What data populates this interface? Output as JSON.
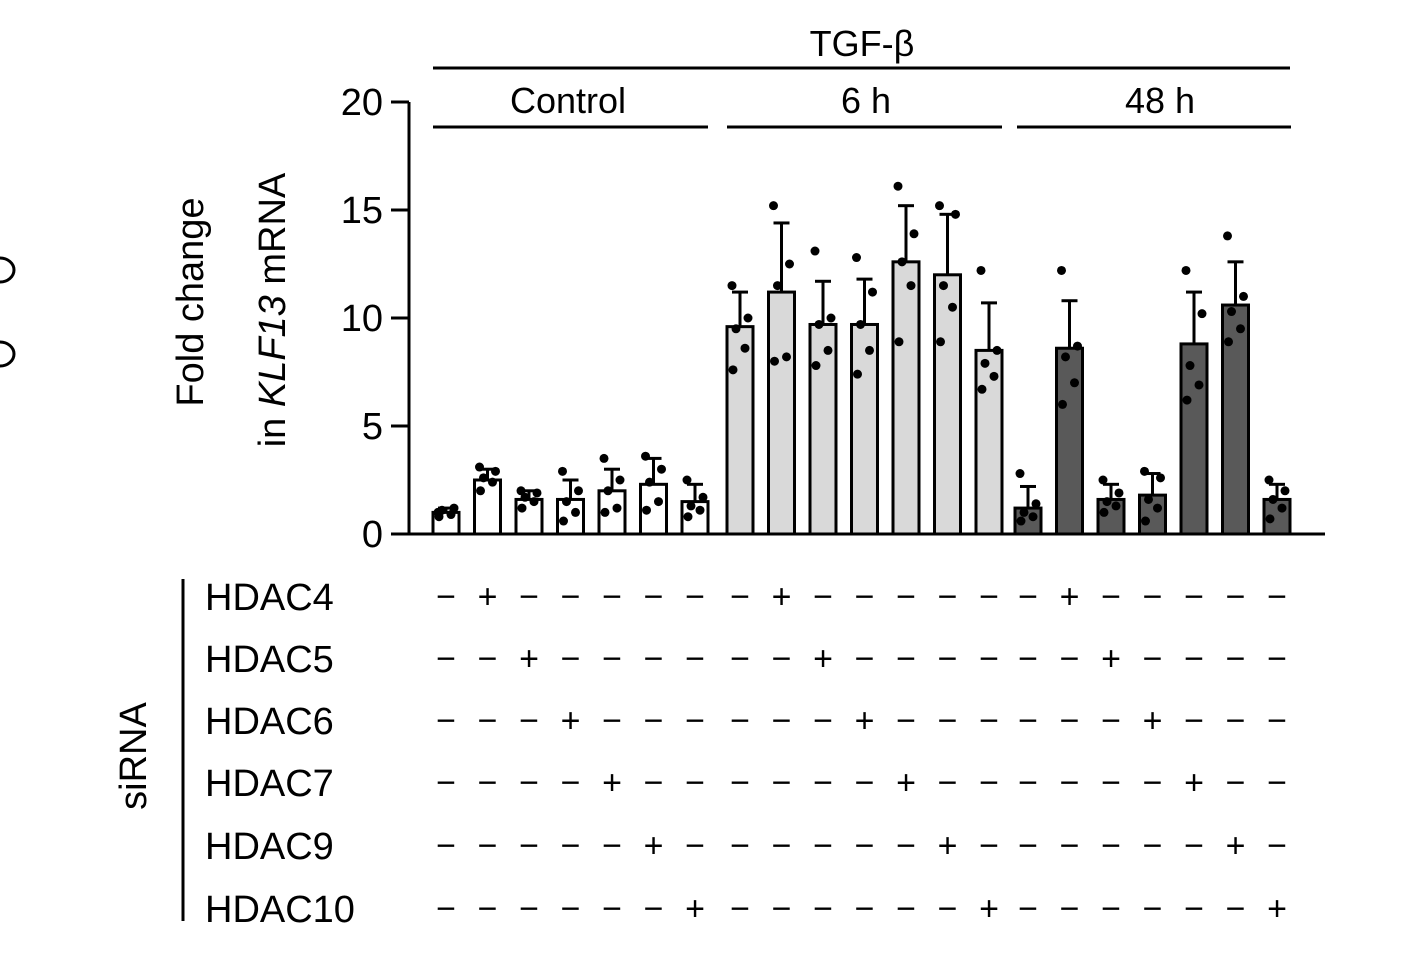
{
  "chart_data": {
    "type": "bar",
    "treatment_label": "TGF-β",
    "groups": [
      {
        "label": "Control",
        "fill": "#ffffff"
      },
      {
        "label": "6 h",
        "fill": "#d9d9d9"
      },
      {
        "label": "48 h",
        "fill": "#595959"
      }
    ],
    "ylabel_line1": "Fold change",
    "ylabel_line2_prefix": "in ",
    "ylabel_line2_gene": "KLF13",
    "ylabel_line2_suffix": " mRNA",
    "ylim": [
      0,
      20
    ],
    "yticks": [
      0,
      5,
      10,
      15,
      20
    ],
    "sirna_label": "siRNA",
    "sirna_rows": [
      "HDAC4",
      "HDAC5",
      "HDAC6",
      "HDAC7",
      "HDAC9",
      "HDAC10"
    ],
    "sign_plus": "+",
    "sign_minus": "−",
    "bars": [
      {
        "group": 0,
        "sirna": null,
        "mean": 1.0,
        "sd": 0.2,
        "points": [
          0.8,
          0.9,
          1.1,
          1.2,
          1.0
        ]
      },
      {
        "group": 0,
        "sirna": 0,
        "mean": 2.5,
        "sd": 0.5,
        "points": [
          2.0,
          2.4,
          2.6,
          2.9,
          3.1
        ]
      },
      {
        "group": 0,
        "sirna": 1,
        "mean": 1.6,
        "sd": 0.4,
        "points": [
          1.2,
          1.5,
          1.7,
          1.9,
          2.0
        ]
      },
      {
        "group": 0,
        "sirna": 2,
        "mean": 1.6,
        "sd": 0.9,
        "points": [
          0.6,
          1.0,
          1.5,
          2.0,
          2.9
        ]
      },
      {
        "group": 0,
        "sirna": 3,
        "mean": 2.0,
        "sd": 1.0,
        "points": [
          1.0,
          1.2,
          2.0,
          2.5,
          3.5
        ]
      },
      {
        "group": 0,
        "sirna": 4,
        "mean": 2.3,
        "sd": 1.2,
        "points": [
          1.1,
          1.5,
          2.4,
          3.0,
          3.6
        ]
      },
      {
        "group": 0,
        "sirna": 5,
        "mean": 1.5,
        "sd": 0.8,
        "points": [
          0.8,
          1.1,
          1.3,
          1.7,
          2.5
        ]
      },
      {
        "group": 1,
        "sirna": null,
        "mean": 9.6,
        "sd": 1.6,
        "points": [
          7.6,
          8.6,
          9.5,
          10.0,
          11.5
        ]
      },
      {
        "group": 1,
        "sirna": 0,
        "mean": 11.2,
        "sd": 3.2,
        "points": [
          8.0,
          8.2,
          11.5,
          12.5,
          15.2
        ]
      },
      {
        "group": 1,
        "sirna": 1,
        "mean": 9.7,
        "sd": 2.0,
        "points": [
          7.8,
          8.5,
          9.7,
          10.0,
          13.1
        ]
      },
      {
        "group": 1,
        "sirna": 2,
        "mean": 9.7,
        "sd": 2.1,
        "points": [
          7.4,
          8.5,
          9.7,
          11.2,
          12.8
        ]
      },
      {
        "group": 1,
        "sirna": 3,
        "mean": 12.6,
        "sd": 2.6,
        "points": [
          8.9,
          11.5,
          12.6,
          13.9,
          16.1
        ]
      },
      {
        "group": 1,
        "sirna": 4,
        "mean": 12.0,
        "sd": 2.8,
        "points": [
          8.9,
          10.5,
          11.5,
          14.8,
          15.2
        ]
      },
      {
        "group": 1,
        "sirna": 5,
        "mean": 8.5,
        "sd": 2.2,
        "points": [
          6.7,
          7.3,
          7.9,
          8.5,
          12.2
        ]
      },
      {
        "group": 2,
        "sirna": null,
        "mean": 1.2,
        "sd": 1.0,
        "points": [
          0.6,
          0.8,
          1.0,
          1.4,
          2.8
        ]
      },
      {
        "group": 2,
        "sirna": 0,
        "mean": 8.6,
        "sd": 2.2,
        "points": [
          6.0,
          7.0,
          8.2,
          8.7,
          12.2
        ]
      },
      {
        "group": 2,
        "sirna": 1,
        "mean": 1.6,
        "sd": 0.7,
        "points": [
          1.0,
          1.3,
          1.5,
          1.9,
          2.5
        ]
      },
      {
        "group": 2,
        "sirna": 2,
        "mean": 1.8,
        "sd": 1.0,
        "points": [
          0.6,
          1.2,
          1.6,
          2.6,
          2.9
        ]
      },
      {
        "group": 2,
        "sirna": 3,
        "mean": 8.8,
        "sd": 2.4,
        "points": [
          6.2,
          6.9,
          7.8,
          10.2,
          12.2
        ]
      },
      {
        "group": 2,
        "sirna": 4,
        "mean": 10.6,
        "sd": 2.0,
        "points": [
          8.9,
          9.5,
          10.3,
          11.0,
          13.8
        ]
      },
      {
        "group": 2,
        "sirna": 5,
        "mean": 1.6,
        "sd": 0.7,
        "points": [
          0.7,
          1.2,
          1.6,
          2.0,
          2.5
        ]
      }
    ]
  }
}
